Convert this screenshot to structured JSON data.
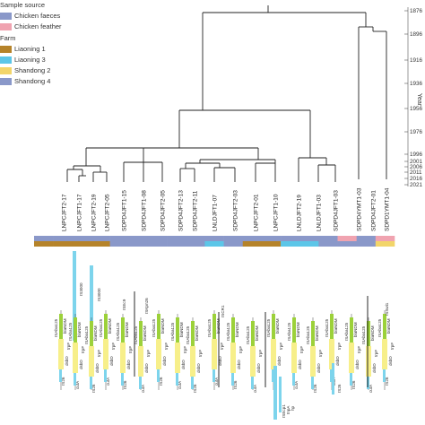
{
  "legend": {
    "source_title": "Sample source",
    "source_items": [
      {
        "label": "Chicken faeces",
        "color": "#8a98c9"
      },
      {
        "label": "Chicken feather",
        "color": "#f0a3b0"
      }
    ],
    "farm_title": "Farm",
    "farm_items": [
      {
        "label": "Liaoning 1",
        "color": "#b5832a"
      },
      {
        "label": "Liaoning 3",
        "color": "#5cc6e8"
      },
      {
        "label": "Shandong 2",
        "color": "#f2d56a"
      },
      {
        "label": "Shandong 4",
        "color": "#8a98c9"
      }
    ]
  },
  "axis": {
    "title": "Year",
    "ticks": [
      "1876",
      "1896",
      "1916",
      "1936",
      "1956",
      "1976",
      "1996",
      "2001",
      "2006",
      "2011",
      "2016",
      "2021"
    ]
  },
  "isolates": [
    {
      "name": "LNPCJFT2-17",
      "source": "faeces",
      "farm": "Liaoning 1"
    },
    {
      "name": "LNPCJFT1-17",
      "source": "faeces",
      "farm": "Liaoning 1"
    },
    {
      "name": "LNPCJFT2-19",
      "source": "faeces",
      "farm": "Liaoning 1"
    },
    {
      "name": "LNPCJFT2-05",
      "source": "faeces",
      "farm": "Liaoning 1"
    },
    {
      "name": "SDPD4JFT1-15",
      "source": "faeces",
      "farm": "Shandong 4"
    },
    {
      "name": "SDPD4JFT1-08",
      "source": "faeces",
      "farm": "Shandong 4"
    },
    {
      "name": "SDPD4JFT2-05",
      "source": "faeces",
      "farm": "Shandong 4"
    },
    {
      "name": "SDPD4JFT2-13",
      "source": "faeces",
      "farm": "Shandong 4"
    },
    {
      "name": "SDPD4JFT2-11",
      "source": "faeces",
      "farm": "Shandong 4"
    },
    {
      "name": "LNLDJFT1-07",
      "source": "faeces",
      "farm": "Liaoning 3"
    },
    {
      "name": "SDPD4JFT2-03",
      "source": "faeces",
      "farm": "Shandong 4"
    },
    {
      "name": "LNPCJFT2-01",
      "source": "faeces",
      "farm": "Liaoning 1"
    },
    {
      "name": "LNPCJFT1-10",
      "source": "faeces",
      "farm": "Liaoning 1"
    },
    {
      "name": "LNLDJFT2-19",
      "source": "faeces",
      "farm": "Liaoning 3"
    },
    {
      "name": "LNLDJFT1-03",
      "source": "faeces",
      "farm": "Liaoning 3"
    },
    {
      "name": "SDPD4JFT1-03",
      "source": "faeces",
      "farm": "Shandong 4"
    },
    {
      "name": "SDPD4YMT1-03",
      "source": "feather",
      "farm": "Shandong 4"
    },
    {
      "name": "SDPD4JFT2-01",
      "source": "faeces",
      "farm": "Shandong 4"
    },
    {
      "name": "SDPD1YMT1-04",
      "source": "feather",
      "farm": "Shandong 2"
    }
  ],
  "gene_labels": [
    "IS26",
    "ISKpn26",
    "ISAba125",
    "ISEc9",
    "blaNDM",
    "ble",
    "trpF",
    "dsbD",
    "cutA",
    "groES",
    "groEL",
    "ISSwi1",
    "ISCR1",
    "ISEcp1",
    "tnpA",
    "hp",
    "IS3000"
  ],
  "colors": {
    "green": "#9cd13a",
    "yellow": "#f7ef8a",
    "cyan": "#7dd4ec",
    "tree": "#222222"
  }
}
